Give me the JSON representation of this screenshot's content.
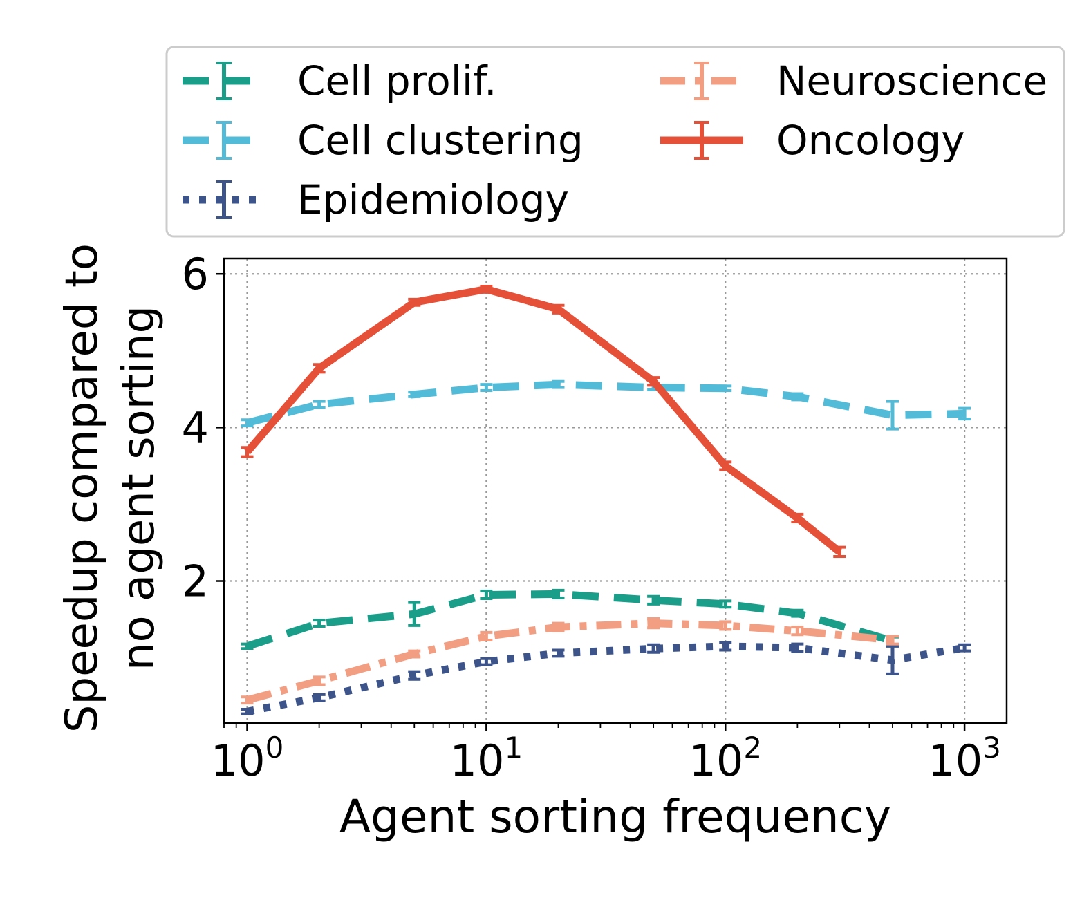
{
  "chart_data": {
    "type": "line",
    "title": "",
    "xlabel": "Agent sorting frequency",
    "ylabel_lines": [
      "Speedup compared to",
      "no agent sorting"
    ],
    "xscale": "log",
    "xlim": [
      0.8,
      1500
    ],
    "ylim": [
      0.15,
      6.2
    ],
    "x_ticks": [
      {
        "value": 1,
        "base": "10",
        "exp": "0"
      },
      {
        "value": 10,
        "base": "10",
        "exp": "1"
      },
      {
        "value": 100,
        "base": "10",
        "exp": "2"
      },
      {
        "value": 1000,
        "base": "10",
        "exp": "3"
      }
    ],
    "y_ticks": [
      {
        "value": 2,
        "label": "2"
      },
      {
        "value": 4,
        "label": "4"
      },
      {
        "value": 6,
        "label": "6"
      }
    ],
    "grid": true,
    "legend_position": "top, above plot",
    "series": [
      {
        "name": "Cell prolif.",
        "color": "#1a9e8a",
        "style": "dashed",
        "x": [
          1,
          2,
          5,
          10,
          20,
          50,
          100,
          200,
          500
        ],
        "y": [
          1.15,
          1.45,
          1.57,
          1.82,
          1.83,
          1.75,
          1.7,
          1.58,
          1.22
        ],
        "err": [
          0.03,
          0.04,
          0.15,
          0.05,
          0.05,
          0.05,
          0.04,
          0.04,
          0.05
        ]
      },
      {
        "name": "Cell clustering",
        "color": "#52bcd8",
        "style": "dashed",
        "x": [
          1,
          2,
          5,
          10,
          20,
          50,
          100,
          200,
          500,
          1000
        ],
        "y": [
          4.06,
          4.3,
          4.43,
          4.52,
          4.56,
          4.52,
          4.51,
          4.4,
          4.16,
          4.18
        ],
        "err": [
          0.04,
          0.04,
          0.03,
          0.04,
          0.04,
          0.03,
          0.03,
          0.04,
          0.18,
          0.07
        ]
      },
      {
        "name": "Epidemiology",
        "color": "#3c5489",
        "style": "dotted",
        "x": [
          1,
          2,
          5,
          10,
          20,
          50,
          100,
          200,
          500,
          1000
        ],
        "y": [
          0.3,
          0.48,
          0.77,
          0.95,
          1.06,
          1.12,
          1.15,
          1.13,
          0.97,
          1.13
        ],
        "err": [
          0.03,
          0.04,
          0.05,
          0.04,
          0.04,
          0.05,
          0.05,
          0.05,
          0.18,
          0.04
        ]
      },
      {
        "name": "Neuroscience",
        "color": "#f29e82",
        "style": "dashdot",
        "x": [
          1,
          2,
          5,
          10,
          20,
          50,
          100,
          200,
          500
        ],
        "y": [
          0.45,
          0.7,
          1.05,
          1.28,
          1.4,
          1.45,
          1.42,
          1.35,
          1.23
        ],
        "err": [
          0.04,
          0.05,
          0.04,
          0.05,
          0.05,
          0.06,
          0.05,
          0.05,
          0.05
        ]
      },
      {
        "name": "Oncology",
        "color": "#e55039",
        "style": "solid",
        "x": [
          1,
          2,
          5,
          10,
          20,
          50,
          100,
          200,
          300
        ],
        "y": [
          3.68,
          4.77,
          5.63,
          5.8,
          5.54,
          4.6,
          3.5,
          2.82,
          2.38
        ],
        "err": [
          0.06,
          0.05,
          0.04,
          0.04,
          0.05,
          0.05,
          0.05,
          0.05,
          0.06
        ]
      }
    ]
  }
}
